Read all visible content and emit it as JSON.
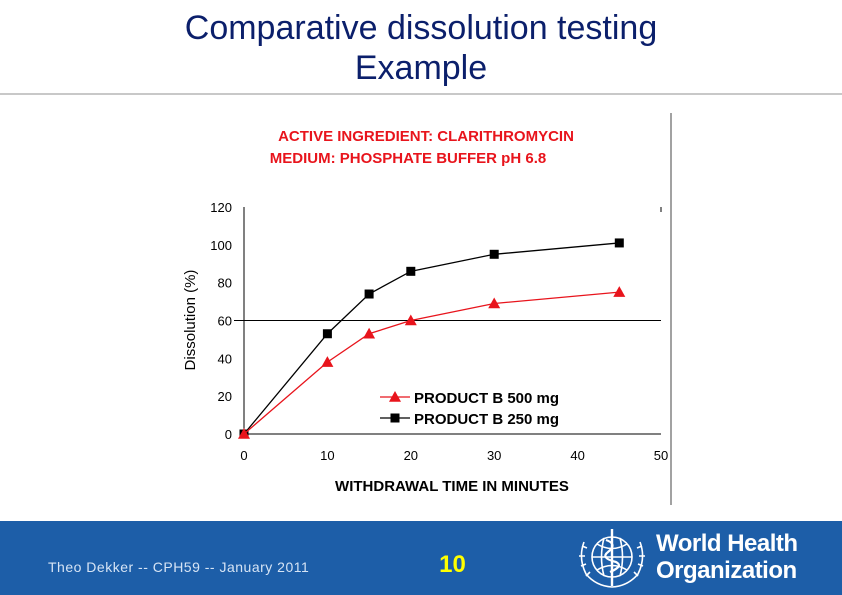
{
  "slide": {
    "title_line1": "Comparative dissolution testing",
    "title_line2": "Example"
  },
  "chart_data": {
    "type": "line",
    "title": "ACTIVE INGREDIENT:  CLARITHROMYCIN",
    "subtitle": "MEDIUM:  PHOSPHATE BUFFER pH 6.8",
    "xlabel": "WITHDRAWAL TIME IN MINUTES",
    "ylabel": "Dissolution (%)",
    "xlim": [
      0,
      50
    ],
    "ylim": [
      0,
      120
    ],
    "x_ticks": [
      "0",
      "10",
      "20",
      "30",
      "40",
      "50"
    ],
    "y_ticks": [
      "0",
      "20",
      "40",
      "60",
      "80",
      "100",
      "120"
    ],
    "reference_line_y": 60,
    "legend_position": "bottom-right",
    "series": [
      {
        "name": "PRODUCT B 500 mg",
        "marker": "triangle",
        "color": "#e8141c",
        "points": [
          [
            0,
            0
          ],
          [
            10,
            38
          ],
          [
            15,
            53
          ],
          [
            20,
            60
          ],
          [
            30,
            69
          ],
          [
            45,
            75
          ]
        ]
      },
      {
        "name": "PRODUCT B 250 mg",
        "marker": "square",
        "color": "#000000",
        "points": [
          [
            0,
            0
          ],
          [
            10,
            53
          ],
          [
            15,
            74
          ],
          [
            20,
            86
          ],
          [
            30,
            95
          ],
          [
            45,
            101
          ]
        ]
      }
    ]
  },
  "footer": {
    "caption": "Theo Dekker   --  CPH59  -- January 2011",
    "page_number": "10",
    "org_name_line1": "World Health",
    "org_name_line2": "Organization"
  },
  "colors": {
    "title": "#0b1f6b",
    "chart_heading": "#e8141c",
    "footer_background": "#1d5ea8",
    "page_number": "#ffff00"
  },
  "icons": {
    "logo": "who-emblem-icon"
  }
}
